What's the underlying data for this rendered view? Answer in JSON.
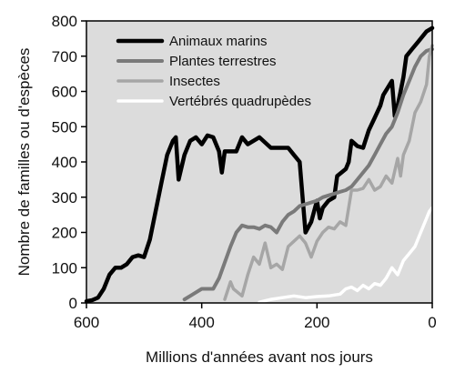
{
  "chart_data": {
    "type": "line",
    "title": "",
    "xlabel": "Millions d'années avant nos jours",
    "ylabel": "Nombre de familles ou d'espèces",
    "xlim": [
      600,
      0
    ],
    "ylim": [
      0,
      800
    ],
    "x_reversed": true,
    "x_ticks": [
      600,
      400,
      200,
      0
    ],
    "y_ticks": [
      0,
      100,
      200,
      300,
      400,
      500,
      600,
      700,
      800
    ],
    "grid": false,
    "legend_position": "top-left-inside",
    "plot_background": "#dcdcdc",
    "series": [
      {
        "name": "Animaux marins",
        "color": "#000000",
        "width": 4.5,
        "points": [
          [
            600,
            5
          ],
          [
            590,
            8
          ],
          [
            580,
            15
          ],
          [
            570,
            40
          ],
          [
            560,
            80
          ],
          [
            550,
            100
          ],
          [
            540,
            100
          ],
          [
            530,
            110
          ],
          [
            520,
            130
          ],
          [
            510,
            135
          ],
          [
            500,
            130
          ],
          [
            490,
            180
          ],
          [
            480,
            260
          ],
          [
            470,
            340
          ],
          [
            460,
            420
          ],
          [
            450,
            460
          ],
          [
            445,
            470
          ],
          [
            440,
            350
          ],
          [
            430,
            420
          ],
          [
            420,
            460
          ],
          [
            410,
            470
          ],
          [
            400,
            450
          ],
          [
            390,
            475
          ],
          [
            380,
            470
          ],
          [
            370,
            430
          ],
          [
            365,
            370
          ],
          [
            360,
            430
          ],
          [
            340,
            430
          ],
          [
            330,
            470
          ],
          [
            320,
            450
          ],
          [
            300,
            470
          ],
          [
            280,
            440
          ],
          [
            250,
            440
          ],
          [
            240,
            420
          ],
          [
            230,
            400
          ],
          [
            220,
            200
          ],
          [
            210,
            230
          ],
          [
            200,
            290
          ],
          [
            195,
            240
          ],
          [
            190,
            270
          ],
          [
            180,
            290
          ],
          [
            170,
            300
          ],
          [
            165,
            360
          ],
          [
            150,
            380
          ],
          [
            145,
            400
          ],
          [
            140,
            460
          ],
          [
            130,
            445
          ],
          [
            120,
            440
          ],
          [
            110,
            490
          ],
          [
            100,
            525
          ],
          [
            90,
            560
          ],
          [
            85,
            590
          ],
          [
            70,
            630
          ],
          [
            65,
            530
          ],
          [
            60,
            560
          ],
          [
            55,
            600
          ],
          [
            50,
            640
          ],
          [
            45,
            700
          ],
          [
            35,
            720
          ],
          [
            25,
            740
          ],
          [
            10,
            770
          ],
          [
            0,
            780
          ]
        ]
      },
      {
        "name": "Plantes terrestres",
        "color": "#7a7a7a",
        "width": 4,
        "points": [
          [
            430,
            10
          ],
          [
            420,
            20
          ],
          [
            410,
            30
          ],
          [
            400,
            40
          ],
          [
            380,
            40
          ],
          [
            370,
            70
          ],
          [
            350,
            160
          ],
          [
            340,
            200
          ],
          [
            330,
            220
          ],
          [
            320,
            215
          ],
          [
            310,
            215
          ],
          [
            300,
            210
          ],
          [
            290,
            220
          ],
          [
            280,
            215
          ],
          [
            270,
            200
          ],
          [
            260,
            230
          ],
          [
            250,
            250
          ],
          [
            240,
            260
          ],
          [
            230,
            275
          ],
          [
            220,
            280
          ],
          [
            210,
            285
          ],
          [
            200,
            290
          ],
          [
            190,
            300
          ],
          [
            180,
            305
          ],
          [
            170,
            310
          ],
          [
            160,
            315
          ],
          [
            150,
            320
          ],
          [
            140,
            330
          ],
          [
            130,
            350
          ],
          [
            120,
            370
          ],
          [
            110,
            390
          ],
          [
            100,
            420
          ],
          [
            90,
            450
          ],
          [
            80,
            480
          ],
          [
            70,
            500
          ],
          [
            60,
            540
          ],
          [
            50,
            590
          ],
          [
            40,
            630
          ],
          [
            30,
            670
          ],
          [
            20,
            700
          ],
          [
            10,
            715
          ],
          [
            0,
            720
          ]
        ]
      },
      {
        "name": "Insectes",
        "color": "#a6a6a6",
        "width": 3.5,
        "points": [
          [
            360,
            10
          ],
          [
            350,
            60
          ],
          [
            345,
            40
          ],
          [
            330,
            20
          ],
          [
            320,
            80
          ],
          [
            310,
            130
          ],
          [
            300,
            110
          ],
          [
            290,
            170
          ],
          [
            280,
            100
          ],
          [
            270,
            110
          ],
          [
            260,
            95
          ],
          [
            250,
            160
          ],
          [
            240,
            175
          ],
          [
            230,
            190
          ],
          [
            220,
            170
          ],
          [
            210,
            130
          ],
          [
            200,
            175
          ],
          [
            190,
            200
          ],
          [
            180,
            215
          ],
          [
            170,
            210
          ],
          [
            160,
            230
          ],
          [
            150,
            220
          ],
          [
            140,
            320
          ],
          [
            130,
            320
          ],
          [
            120,
            325
          ],
          [
            110,
            350
          ],
          [
            100,
            320
          ],
          [
            90,
            330
          ],
          [
            80,
            360
          ],
          [
            70,
            340
          ],
          [
            60,
            410
          ],
          [
            55,
            360
          ],
          [
            50,
            420
          ],
          [
            40,
            460
          ],
          [
            30,
            540
          ],
          [
            20,
            570
          ],
          [
            10,
            620
          ],
          [
            5,
            700
          ],
          [
            0,
            730
          ]
        ]
      },
      {
        "name": "Vertébrés quadrupèdes",
        "color": "#ffffff",
        "width": 3.5,
        "points": [
          [
            300,
            2
          ],
          [
            280,
            10
          ],
          [
            260,
            15
          ],
          [
            240,
            20
          ],
          [
            220,
            15
          ],
          [
            200,
            18
          ],
          [
            180,
            20
          ],
          [
            160,
            25
          ],
          [
            150,
            40
          ],
          [
            140,
            45
          ],
          [
            130,
            35
          ],
          [
            120,
            50
          ],
          [
            110,
            40
          ],
          [
            100,
            55
          ],
          [
            90,
            50
          ],
          [
            80,
            70
          ],
          [
            70,
            100
          ],
          [
            60,
            80
          ],
          [
            50,
            120
          ],
          [
            40,
            140
          ],
          [
            30,
            160
          ],
          [
            20,
            200
          ],
          [
            10,
            240
          ],
          [
            5,
            260
          ],
          [
            0,
            270
          ]
        ]
      }
    ]
  }
}
